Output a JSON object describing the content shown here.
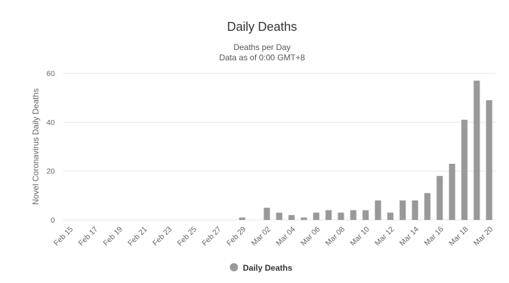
{
  "chart_data": {
    "type": "bar",
    "title": "Daily Deaths",
    "subtitle_lines": [
      "Deaths per Day",
      "Data as of 0:00 GMT+8"
    ],
    "xlabel": "",
    "ylabel": "Novel Coronavirus Daily Deaths",
    "ylim": [
      0,
      60
    ],
    "yticks": [
      0,
      20,
      40,
      60
    ],
    "grid": true,
    "legend_position": "bottom-center",
    "bar_color": "#999999",
    "categories": [
      "Feb 15",
      "Feb 16",
      "Feb 17",
      "Feb 18",
      "Feb 19",
      "Feb 20",
      "Feb 21",
      "Feb 22",
      "Feb 23",
      "Feb 24",
      "Feb 25",
      "Feb 26",
      "Feb 27",
      "Feb 28",
      "Feb 29",
      "Mar 01",
      "Mar 02",
      "Mar 03",
      "Mar 04",
      "Mar 05",
      "Mar 06",
      "Mar 07",
      "Mar 08",
      "Mar 09",
      "Mar 10",
      "Mar 11",
      "Mar 12",
      "Mar 13",
      "Mar 14",
      "Mar 15",
      "Mar 16",
      "Mar 17",
      "Mar 18",
      "Mar 19",
      "Mar 20"
    ],
    "tick_labels": [
      "Feb 15",
      "Feb 17",
      "Feb 19",
      "Feb 21",
      "Feb 23",
      "Feb 25",
      "Feb 27",
      "Feb 29",
      "Mar 02",
      "Mar 04",
      "Mar 06",
      "Mar 08",
      "Mar 10",
      "Mar 12",
      "Mar 14",
      "Mar 16",
      "Mar 18",
      "Mar 20"
    ],
    "series": [
      {
        "name": "Daily Deaths",
        "values": [
          0,
          0,
          0,
          0,
          0,
          0,
          0,
          0,
          0,
          0,
          0,
          0,
          0,
          0,
          1,
          0,
          5,
          3,
          2,
          1,
          3,
          4,
          3,
          4,
          4,
          8,
          3,
          8,
          8,
          11,
          18,
          23,
          41,
          57,
          49
        ]
      }
    ]
  }
}
